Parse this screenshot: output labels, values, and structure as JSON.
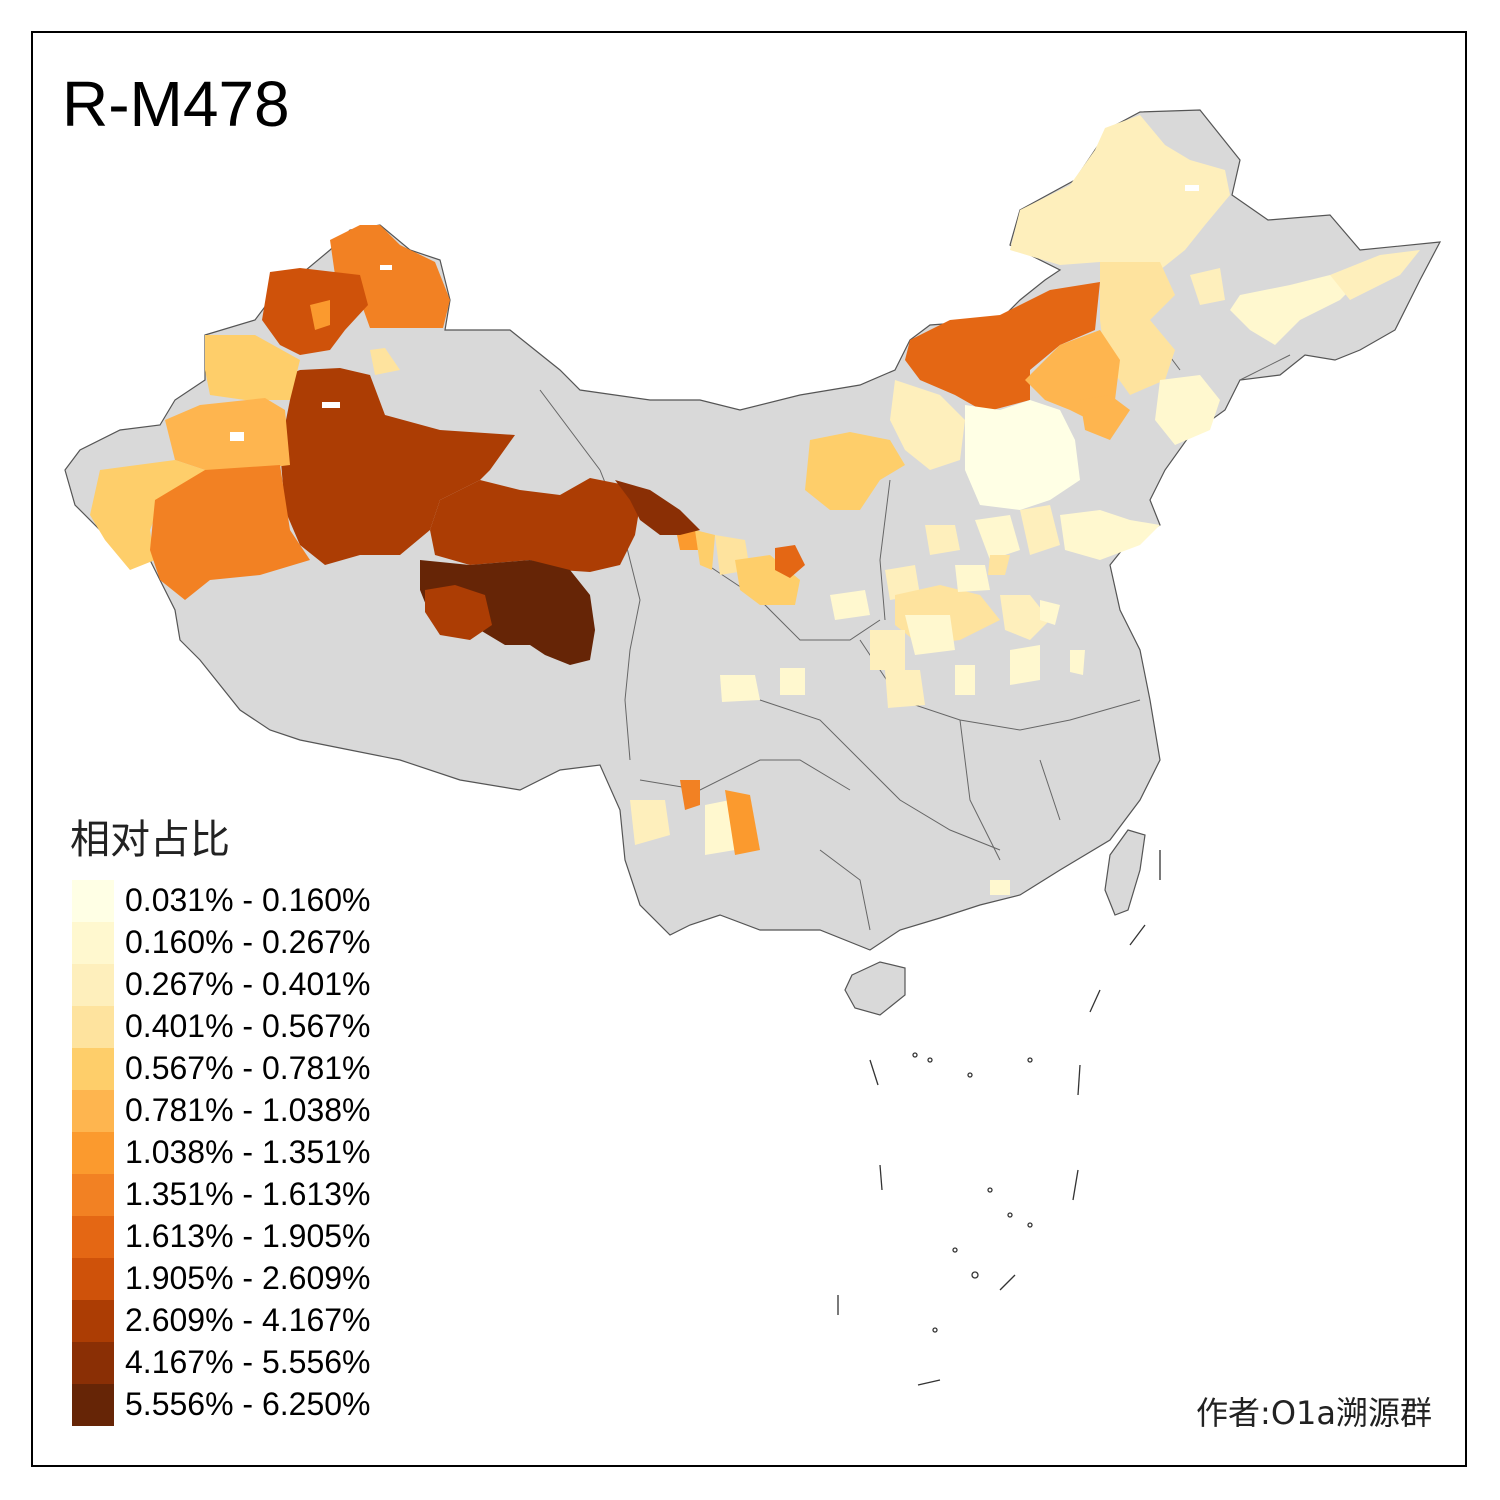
{
  "title": "R-M478",
  "legend": {
    "title": "相对占比",
    "items": [
      {
        "label": "0.031% - 0.160%",
        "color": "#FFFFE5"
      },
      {
        "label": "0.160% - 0.267%",
        "color": "#FFF8CF"
      },
      {
        "label": "0.267% - 0.401%",
        "color": "#FEEFBC"
      },
      {
        "label": "0.401% - 0.567%",
        "color": "#FEE39E"
      },
      {
        "label": "0.567% - 0.781%",
        "color": "#FECE6A"
      },
      {
        "label": "0.781% - 1.038%",
        "color": "#FEB54F"
      },
      {
        "label": "1.038% - 1.351%",
        "color": "#FB9A2E"
      },
      {
        "label": "1.351% - 1.613%",
        "color": "#F28123"
      },
      {
        "label": "1.613% - 1.905%",
        "color": "#E46714"
      },
      {
        "label": "1.905% - 2.609%",
        "color": "#CF520A"
      },
      {
        "label": "2.609% - 4.167%",
        "color": "#AC3D04"
      },
      {
        "label": "4.167% - 5.556%",
        "color": "#8A2F05"
      },
      {
        "label": "5.556% - 6.250%",
        "color": "#662506"
      }
    ]
  },
  "author": "作者:O1a溯源群",
  "colors": {
    "no_data": "#D9D9D9",
    "border": "#555555",
    "frame": "#000000"
  }
}
